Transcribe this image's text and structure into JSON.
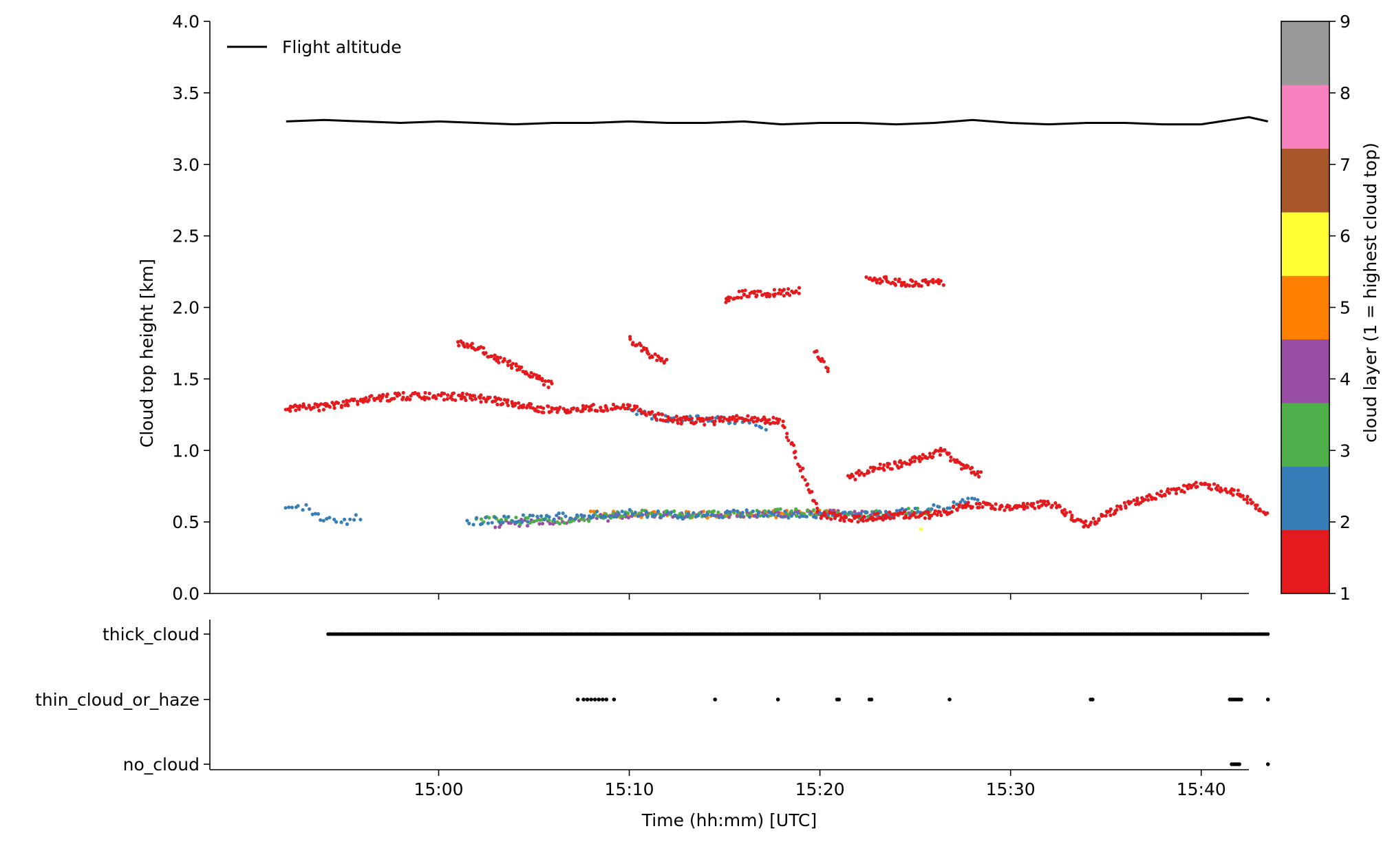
{
  "chart_data": [
    {
      "type": "scatter",
      "title": "",
      "xlabel": "",
      "ylabel": "Cloud top height [km]",
      "ylim": [
        0,
        4.0
      ],
      "yticks": [
        "0.0",
        "0.5",
        "1.0",
        "1.5",
        "2.0",
        "2.5",
        "3.0",
        "3.5",
        "4.0"
      ],
      "xlim_minutes": [
        -12,
        42.5
      ],
      "legend": {
        "position": "top-left",
        "entries": [
          "Flight altitude"
        ]
      },
      "grid": false,
      "series": [
        {
          "name": "Flight altitude",
          "type": "line",
          "color": "#000000",
          "x_minutes": [
            -8.0,
            -6.0,
            -4.0,
            -2.0,
            0.0,
            2.0,
            4.0,
            6.0,
            8.0,
            10.0,
            12.0,
            14.0,
            16.0,
            18.0,
            20.0,
            22.0,
            24.0,
            26.0,
            28.0,
            30.0,
            32.0,
            34.0,
            36.0,
            38.0,
            40.0,
            41.5,
            42.5,
            43.5
          ],
          "y_km": [
            3.3,
            3.31,
            3.3,
            3.29,
            3.3,
            3.29,
            3.28,
            3.29,
            3.29,
            3.3,
            3.29,
            3.29,
            3.3,
            3.28,
            3.29,
            3.29,
            3.28,
            3.29,
            3.31,
            3.29,
            3.28,
            3.29,
            3.29,
            3.28,
            3.28,
            3.31,
            3.33,
            3.3
          ]
        },
        {
          "name": "cloud layer 1",
          "color": "#e41a1c",
          "type": "scatter",
          "segments": [
            {
              "x": [
                -8.0,
                -6.0,
                -4.0,
                -2.0,
                0.0,
                2.0,
                4.0,
                6.0,
                8.0,
                10.0,
                12.0,
                14.0,
                16.0,
                18.0,
                20.0,
                22.0,
                24.0,
                26.0,
                28.0,
                28.3,
                30.0,
                32.0,
                34.0,
                36.0,
                38.0,
                40.0,
                42.0,
                43.5
              ],
              "y": [
                1.3,
                1.3,
                1.35,
                1.38,
                1.38,
                1.37,
                1.32,
                1.28,
                1.3,
                1.3,
                1.22,
                1.2,
                1.23,
                1.2,
                0.55,
                0.52,
                0.55,
                0.55,
                0.62,
                0.62,
                0.6,
                0.63,
                0.48,
                0.62,
                0.7,
                0.76,
                0.7,
                0.55
              ]
            },
            {
              "x": [
                1.0,
                2.0,
                3.0,
                4.0,
                5.0,
                6.0
              ],
              "y": [
                1.75,
                1.72,
                1.65,
                1.58,
                1.52,
                1.45
              ]
            },
            {
              "x": [
                10.0,
                11.0,
                12.0
              ],
              "y": [
                1.78,
                1.68,
                1.62
              ]
            },
            {
              "x": [
                15.0,
                16.0,
                17.0,
                18.0,
                19.0
              ],
              "y": [
                2.05,
                2.1,
                2.1,
                2.1,
                2.12
              ]
            },
            {
              "x": [
                22.5,
                23.5,
                24.5,
                25.5,
                26.5
              ],
              "y": [
                2.2,
                2.19,
                2.17,
                2.17,
                2.18
              ]
            },
            {
              "x": [
                21.5,
                22.5,
                24.0,
                25.5,
                26.5,
                27.5,
                28.5
              ],
              "y": [
                0.8,
                0.86,
                0.9,
                0.95,
                1.0,
                0.88,
                0.83
              ]
            },
            {
              "x": [
                19.7,
                20.2,
                20.5
              ],
              "y": [
                1.7,
                1.6,
                1.55
              ]
            }
          ]
        },
        {
          "name": "cloud layer 2",
          "color": "#377eb8",
          "type": "scatter",
          "segments": [
            {
              "x": [
                -8.0,
                -7.0,
                -6.0,
                -5.0,
                -4.0
              ],
              "y": [
                0.58,
                0.6,
                0.52,
                0.5,
                0.54
              ]
            },
            {
              "x": [
                1.5,
                4.0,
                7.0,
                10.0,
                13.0,
                16.0,
                19.0,
                22.0,
                25.0,
                27.0,
                28.5
              ],
              "y": [
                0.5,
                0.52,
                0.54,
                0.56,
                0.54,
                0.56,
                0.55,
                0.56,
                0.57,
                0.62,
                0.66
              ]
            },
            {
              "x": [
                10.0,
                12.0,
                14.0,
                16.0,
                17.5
              ],
              "y": [
                1.28,
                1.22,
                1.22,
                1.2,
                1.16
              ]
            }
          ]
        },
        {
          "name": "cloud layer 3",
          "color": "#4daf4a",
          "type": "scatter",
          "segments": [
            {
              "x": [
                2.0,
                6.0,
                10.0,
                14.0,
                18.0,
                22.0,
                26.0
              ],
              "y": [
                0.52,
                0.5,
                0.56,
                0.55,
                0.57,
                0.55,
                0.58
              ]
            }
          ]
        },
        {
          "name": "cloud layer 4",
          "color": "#984ea3",
          "type": "scatter",
          "segments": [
            {
              "x": [
                3.0,
                7.0,
                12.0,
                18.0,
                25.0
              ],
              "y": [
                0.48,
                0.52,
                0.55,
                0.56,
                0.55
              ]
            }
          ]
        },
        {
          "name": "cloud layer 5",
          "color": "#ff7f00",
          "type": "scatter",
          "segments": [
            {
              "x": [
                8.0,
                13.0,
                21.0
              ],
              "y": [
                0.56,
                0.55,
                0.56
              ]
            }
          ]
        },
        {
          "name": "cloud layer 6",
          "color": "#ffff33",
          "type": "scatter",
          "segments": [
            {
              "x": [
                25.3
              ],
              "y": [
                0.45
              ]
            }
          ]
        }
      ]
    },
    {
      "type": "scatter",
      "title": "",
      "xlabel": "Time (hh:mm) [UTC]",
      "ylabel": "",
      "categories": [
        "thick_cloud",
        "thin_cloud_or_haze",
        "no_cloud"
      ],
      "xticks": [
        "15:00",
        "15:10",
        "15:20",
        "15:30",
        "15:40"
      ],
      "xlim_minutes": [
        -12,
        42.5
      ],
      "grid": false,
      "series": [
        {
          "name": "thick_cloud",
          "color": "#000000",
          "x_range_minutes": [
            -5.8,
            43.6
          ]
        },
        {
          "name": "thin_cloud_or_haze",
          "color": "#000000",
          "x_minutes": [
            7.3,
            7.6,
            7.8,
            8.0,
            8.2,
            8.4,
            8.6,
            8.8,
            9.2,
            14.5,
            17.8,
            20.9,
            21.0,
            22.6,
            22.7,
            26.8,
            34.2,
            34.3,
            41.5,
            41.6,
            41.7,
            41.8,
            41.9,
            42.0,
            42.1,
            43.5
          ]
        },
        {
          "name": "no_cloud",
          "color": "#000000",
          "x_minutes": [
            41.6,
            41.7,
            41.8,
            41.9,
            42.0,
            43.5
          ]
        }
      ]
    },
    {
      "type": "colorbar",
      "label": "cloud layer (1 = highest cloud top)",
      "ticks": [
        "1",
        "2",
        "3",
        "4",
        "5",
        "6",
        "7",
        "8",
        "9"
      ],
      "colors": [
        "#e41a1c",
        "#377eb8",
        "#4daf4a",
        "#984ea3",
        "#ff7f00",
        "#ffff33",
        "#a65628",
        "#f781bf",
        "#999999"
      ]
    }
  ]
}
